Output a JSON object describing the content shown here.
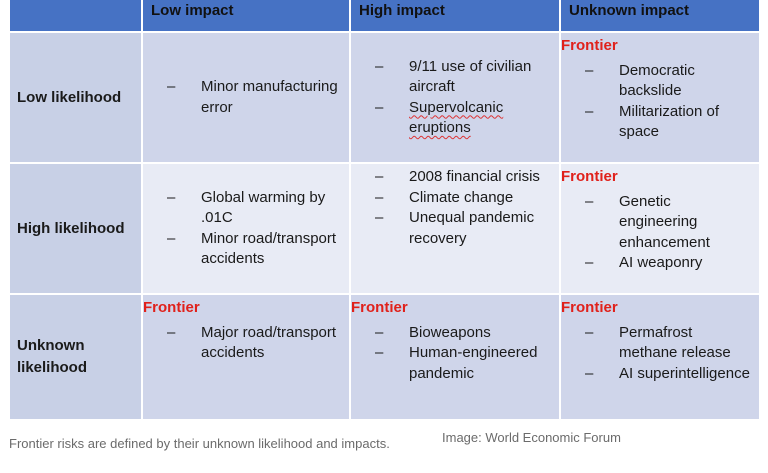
{
  "headers": {
    "low_impact": "Low impact",
    "high_impact": "High impact",
    "unknown_impact": "Unknown impact"
  },
  "rows": {
    "low_likelihood": "Low likelihood",
    "high_likelihood": "High likelihood",
    "unknown_likelihood": "Unknown likelihood"
  },
  "frontier_label": "Frontier",
  "cells": {
    "low_low": [
      "Minor manufacturing error"
    ],
    "low_high": [
      "9/11 use of civilian aircraft",
      "Supervolcanic eruptions"
    ],
    "low_unknown": [
      "Democratic backslide",
      "Militarization of space"
    ],
    "high_low": [
      "Global warming by .01C",
      "Minor road/transport accidents"
    ],
    "high_high": [
      "2008 financial crisis",
      "Climate change",
      "Unequal pandemic recovery"
    ],
    "high_unknown": [
      "Genetic engineering enhancement",
      "AI weaponry"
    ],
    "unknown_low": [
      "Major road/transport accidents"
    ],
    "unknown_high": [
      "Bioweapons",
      "Human-engineered pandemic"
    ],
    "unknown_unknown": [
      "Permafrost methane release",
      "AI superintelligence"
    ]
  },
  "caption": "Frontier risks are defined by their unknown likelihood and impacts.",
  "credit": "Image: World Economic Forum"
}
